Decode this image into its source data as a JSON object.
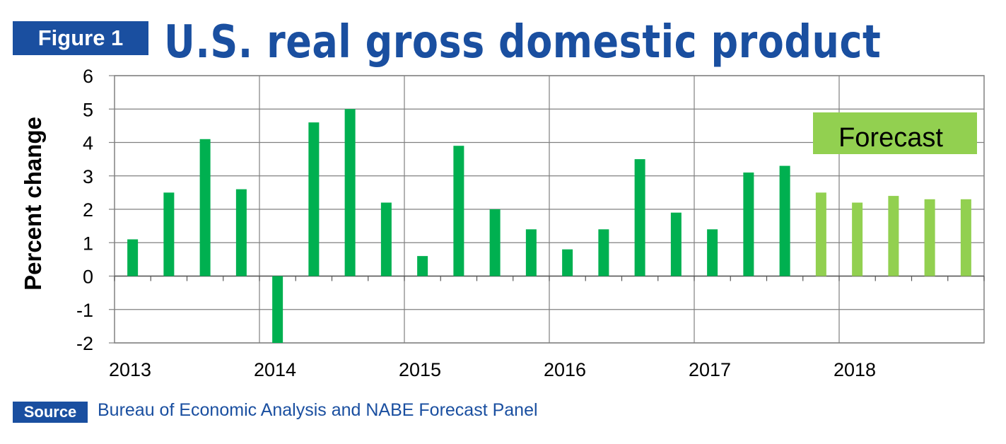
{
  "header": {
    "badge": "Figure 1",
    "title": "U.S. real gross domestic product"
  },
  "footer": {
    "badge": "Source",
    "text": "Bureau of Economic Analysis and NABE Forecast Panel"
  },
  "colors": {
    "brand_blue": "#1a4fa0",
    "actual": "#00b050",
    "forecast": "#92d050",
    "grid": "#808080"
  },
  "chart_data": {
    "type": "bar",
    "title": "U.S. real gross domestic product",
    "ylabel": "Percent change",
    "xlabel": "",
    "ylim": [
      -2,
      6
    ],
    "yticks": [
      "6",
      "5",
      "4",
      "3",
      "2",
      "1",
      "0",
      "-1",
      "-2"
    ],
    "x_tick_labels": [
      "2013",
      "2014",
      "2015",
      "2016",
      "2017",
      "2018"
    ],
    "grid": true,
    "annotation": "Forecast",
    "categories": [
      "2013 Q1",
      "2013 Q2",
      "2013 Q3",
      "2013 Q4",
      "2014 Q1",
      "2014 Q2",
      "2014 Q3",
      "2014 Q4",
      "2015 Q1",
      "2015 Q2",
      "2015 Q3",
      "2015 Q4",
      "2016 Q1",
      "2016 Q2",
      "2016 Q3",
      "2016 Q4",
      "2017 Q1",
      "2017 Q2",
      "2017 Q3",
      "2017 Q4",
      "2018 Q1",
      "2018 Q2",
      "2018 Q3",
      "2018 Q4"
    ],
    "values": [
      1.1,
      2.5,
      4.1,
      2.6,
      -2.0,
      4.6,
      5.0,
      2.2,
      0.6,
      3.9,
      2.0,
      1.4,
      0.8,
      1.4,
      3.5,
      1.9,
      1.4,
      3.1,
      3.3,
      2.5,
      2.2,
      2.4,
      2.3,
      2.3
    ],
    "forecast_from_index": 19
  }
}
